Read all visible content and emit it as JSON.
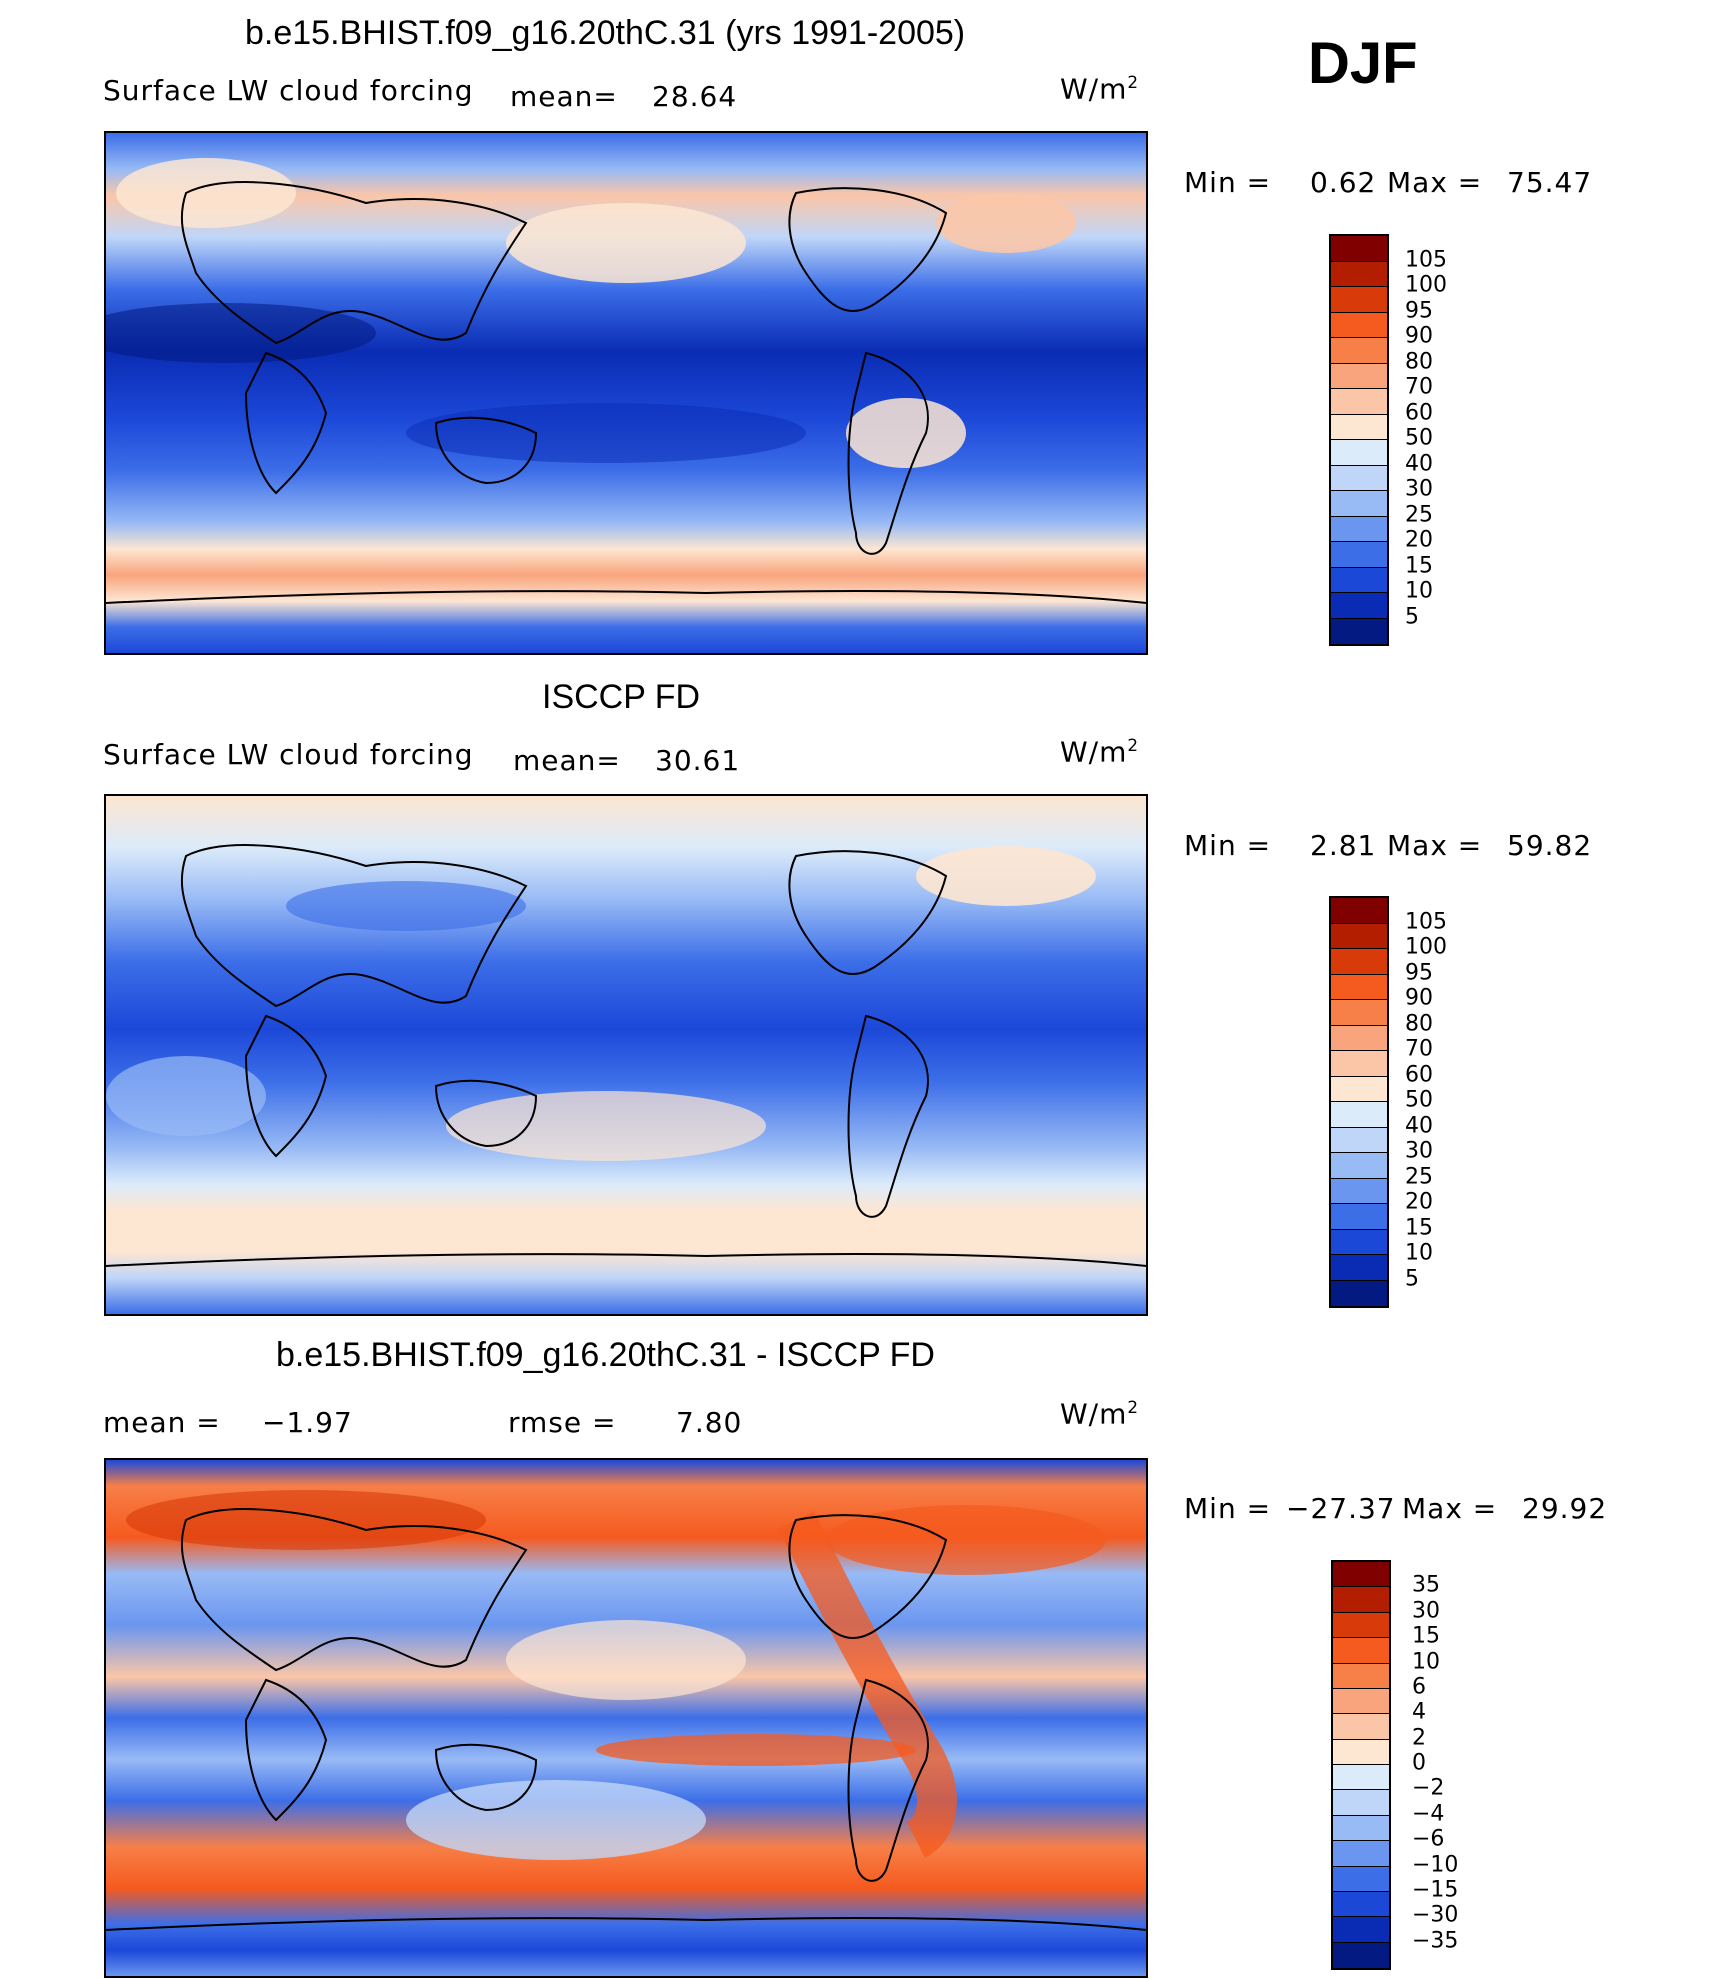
{
  "header": {
    "season": "DJF"
  },
  "panels": [
    {
      "title": "b.e15.BHIST.f09_g16.20thC.31 (yrs 1991-2005)",
      "variable": "Surface LW cloud forcing",
      "stat1_label": "mean=",
      "stat1_value": "28.64",
      "stat2_label": "",
      "stat2_value": "",
      "units": "W/m",
      "units_exp": "2",
      "min_label": "Min =",
      "min_value": "0.62",
      "max_label": "Max =",
      "max_value": "75.47",
      "colorbar_levels": [
        "105",
        "100",
        "95",
        "90",
        "80",
        "70",
        "60",
        "50",
        "40",
        "30",
        "25",
        "20",
        "15",
        "10",
        "5"
      ],
      "colorbar_colors": [
        "#800000",
        "#b41e00",
        "#d93a0a",
        "#f55a1e",
        "#f77f48",
        "#f9a47c",
        "#fbc6a8",
        "#fde6d2",
        "#dcebfa",
        "#c0d6f8",
        "#98baf5",
        "#6a96f0",
        "#3c6ee8",
        "#1c48d8",
        "#0a2cb4",
        "#021a82"
      ]
    },
    {
      "title": "ISCCP FD",
      "variable": "Surface LW cloud forcing",
      "stat1_label": "mean=",
      "stat1_value": "30.61",
      "stat2_label": "",
      "stat2_value": "",
      "units": "W/m",
      "units_exp": "2",
      "min_label": "Min =",
      "min_value": "2.81",
      "max_label": "Max =",
      "max_value": "59.82",
      "colorbar_levels": [
        "105",
        "100",
        "95",
        "90",
        "80",
        "70",
        "60",
        "50",
        "40",
        "30",
        "25",
        "20",
        "15",
        "10",
        "5"
      ],
      "colorbar_colors": [
        "#800000",
        "#b41e00",
        "#d93a0a",
        "#f55a1e",
        "#f77f48",
        "#f9a47c",
        "#fbc6a8",
        "#fde6d2",
        "#dcebfa",
        "#c0d6f8",
        "#98baf5",
        "#6a96f0",
        "#3c6ee8",
        "#1c48d8",
        "#0a2cb4",
        "#021a82"
      ]
    },
    {
      "title": "b.e15.BHIST.f09_g16.20thC.31 - ISCCP FD",
      "variable": "",
      "stat1_label": "mean =",
      "stat1_value": "−1.97",
      "stat2_label": "rmse =",
      "stat2_value": "7.80",
      "units": "W/m",
      "units_exp": "2",
      "min_label": "Min =",
      "min_value": "−27.37",
      "max_label": "Max =",
      "max_value": "29.92",
      "colorbar_levels": [
        "35",
        "30",
        "15",
        "10",
        "6",
        "4",
        "2",
        "0",
        "−2",
        "−4",
        "−6",
        "−10",
        "−15",
        "−30",
        "−35"
      ],
      "colorbar_colors": [
        "#800000",
        "#b41e00",
        "#d93a0a",
        "#f55a1e",
        "#f77f48",
        "#f9a47c",
        "#fbc6a8",
        "#fde6d2",
        "#dcebfa",
        "#c0d6f8",
        "#98baf5",
        "#6a96f0",
        "#3c6ee8",
        "#1c48d8",
        "#0a2cb4",
        "#021a82"
      ]
    }
  ]
}
